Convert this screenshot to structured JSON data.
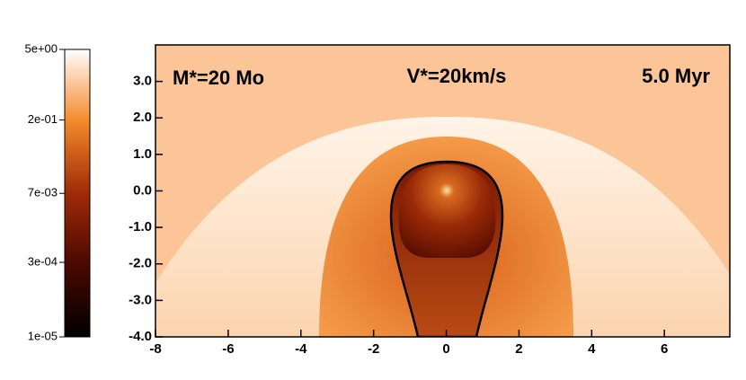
{
  "chart_data": {
    "type": "heatmap",
    "annotations": [
      "M*=20 Mo",
      "V*=20km/s",
      "5.0 Myr"
    ],
    "xlim": [
      -8,
      7.8
    ],
    "xticks": [
      -8,
      -6,
      -4,
      -2,
      0,
      2,
      4,
      6
    ],
    "ylim": [
      -4,
      4
    ],
    "yticks": [
      {
        "value": -4,
        "label": "-4.0"
      },
      {
        "value": -3,
        "label": "-3.0"
      },
      {
        "value": -2,
        "label": "-2.0"
      },
      {
        "value": -1,
        "label": "-1.0"
      },
      {
        "value": 0,
        "label": "0.0"
      },
      {
        "value": 1,
        "label": "1.0"
      },
      {
        "value": 2,
        "label": "2.0"
      },
      {
        "value": 3,
        "label": "3.0"
      }
    ],
    "colorbar": {
      "scale": "log",
      "lim": [
        1e-05,
        5
      ],
      "ticks": [
        {
          "value": 5,
          "label": "5e+00"
        },
        {
          "value": 0.2,
          "label": "2e-01"
        },
        {
          "value": 0.007,
          "label": "7e-03"
        },
        {
          "value": 0.0003,
          "label": "3e-04"
        },
        {
          "value": 1e-05,
          "label": "1e-05"
        }
      ]
    }
  }
}
